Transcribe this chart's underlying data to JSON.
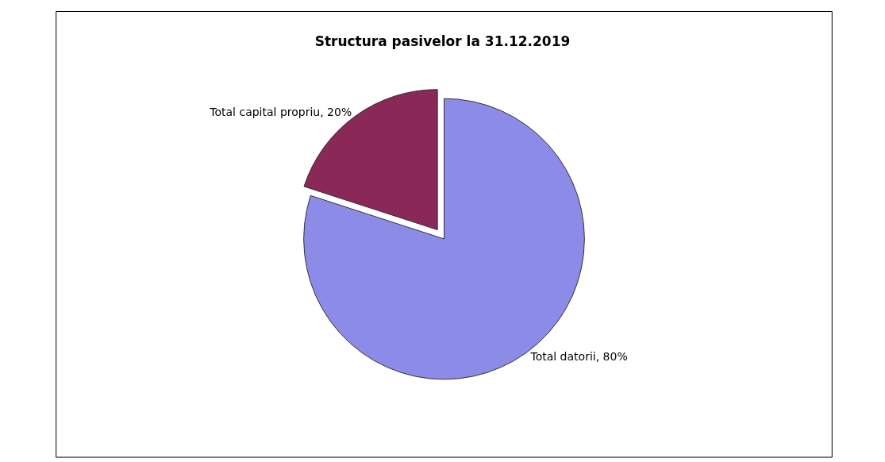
{
  "chart_data": {
    "type": "pie",
    "title": "Structura pasivelor la 31.12.2019",
    "categories": [
      "Total datorii",
      "Total capital propriu"
    ],
    "values": [
      80,
      20
    ],
    "value_labels": [
      "80%",
      "20%"
    ],
    "colors": [
      "#8c8ce8",
      "#8a2858"
    ],
    "legend": false
  }
}
